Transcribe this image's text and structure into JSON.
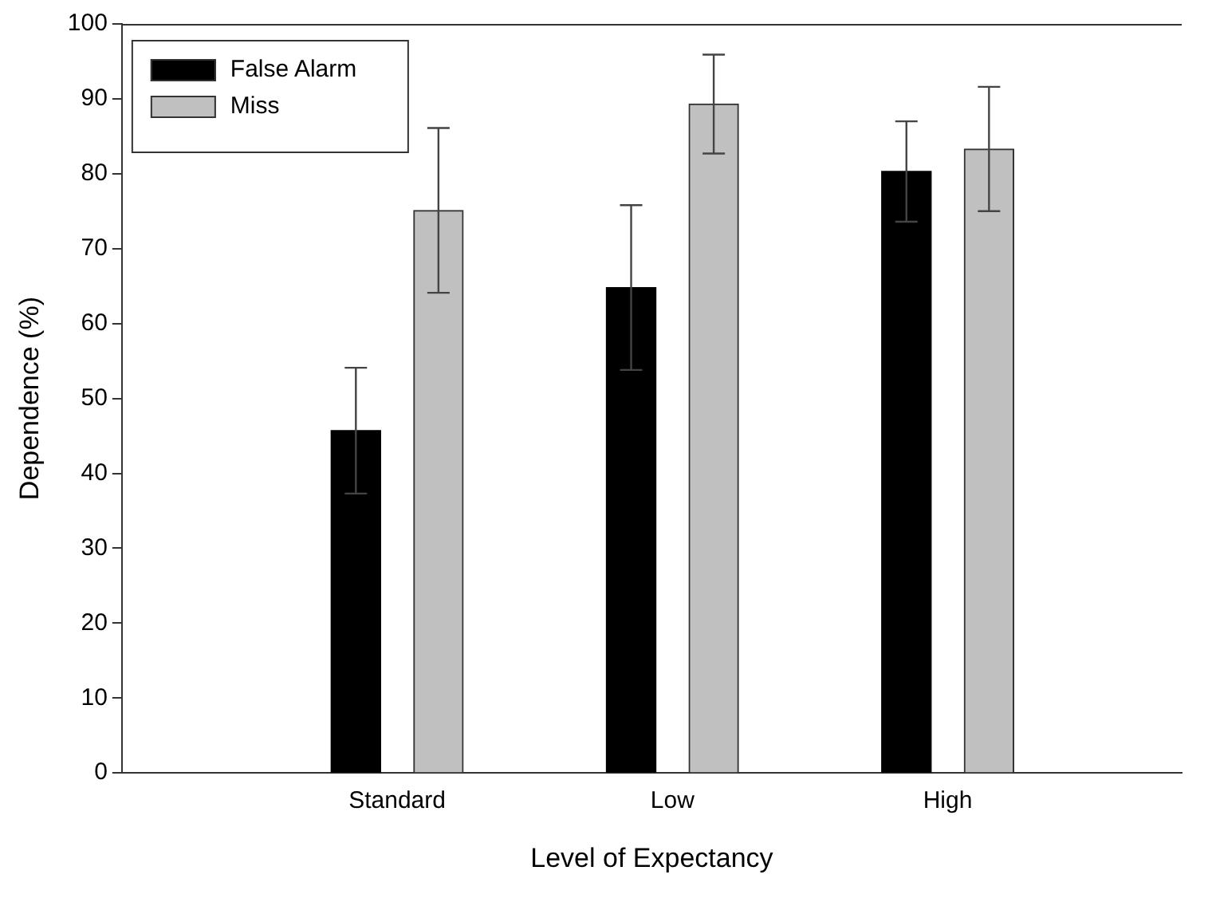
{
  "chart_data": {
    "type": "bar",
    "xlabel": "Level of Expectancy",
    "ylabel": "Dependence (%)",
    "categories": [
      "Standard",
      "Low",
      "High"
    ],
    "series": [
      {
        "name": "False Alarm",
        "color": "#000000",
        "values": [
          45.7,
          64.8,
          80.3
        ],
        "errors": [
          8.4,
          11,
          6.7
        ]
      },
      {
        "name": "Miss",
        "color": "#c0c0c0",
        "values": [
          75.1,
          89.3,
          83.3
        ],
        "errors": [
          11,
          6.6,
          8.3
        ]
      }
    ],
    "ylim": [
      0,
      100
    ],
    "yticks": [
      0,
      10,
      20,
      30,
      40,
      50,
      60,
      70,
      80,
      90,
      100
    ],
    "grid": false,
    "legend": "top left"
  }
}
